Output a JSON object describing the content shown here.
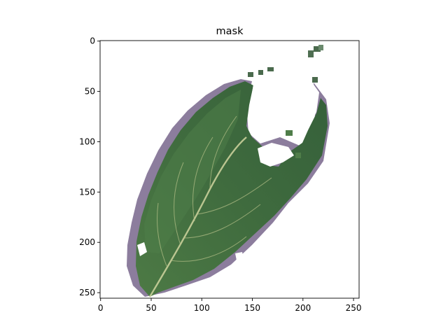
{
  "chart_data": {
    "type": "image",
    "title": "mask",
    "xlabel": "",
    "ylabel": "",
    "xlim": [
      -0.5,
      255.5
    ],
    "ylim": [
      255.5,
      -0.5
    ],
    "x_ticks": [
      0,
      50,
      100,
      150,
      200,
      250
    ],
    "y_ticks": [
      0,
      50,
      100,
      150,
      200,
      250
    ],
    "x_tick_labels": [
      "0",
      "50",
      "100",
      "150",
      "200",
      "250"
    ],
    "y_tick_labels": [
      "0",
      "50",
      "100",
      "150",
      "200",
      "250"
    ],
    "grid": false,
    "legend": false,
    "image_content": "masked-leaf",
    "colors": {
      "background": "#ffffff",
      "leaf_main": "#3f6b3e",
      "leaf_dark": "#2f5530",
      "leaf_light": "#5c8752",
      "vein": "#c9cf9a",
      "shadow": "#7a6a8a",
      "axis": "#000000"
    }
  }
}
